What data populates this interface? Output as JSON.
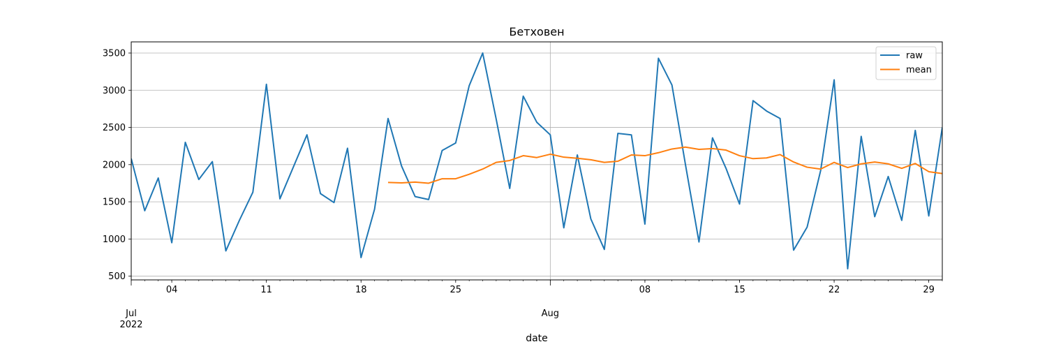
{
  "chart_data": {
    "type": "line",
    "title": "Бетховен",
    "xlabel": "date",
    "ylabel": "",
    "x_start": "2022-07-01",
    "x_end": "2022-07-30",
    "ylim": [
      450,
      3650
    ],
    "y_ticks": [
      500,
      1000,
      1500,
      2000,
      2500,
      3000,
      3500
    ],
    "x_ticks_minor": [
      {
        "date": "2022-07-04",
        "label": "04"
      },
      {
        "date": "2022-07-11",
        "label": "11"
      },
      {
        "date": "2022-07-18",
        "label": "18"
      },
      {
        "date": "2022-07-25",
        "label": "25"
      },
      {
        "date": "2022-08-08",
        "label": "08"
      },
      {
        "date": "2022-08-15",
        "label": "15"
      },
      {
        "date": "2022-08-22",
        "label": "22"
      },
      {
        "date": "2022-08-29",
        "label": "29"
      }
    ],
    "x_ticks_major": [
      {
        "date": "2022-07-01",
        "label": "Jul",
        "sublabel": "2022"
      },
      {
        "date": "2022-08-01",
        "label": "Aug",
        "sublabel": ""
      }
    ],
    "grid": true,
    "legend_position": "top-right",
    "series": [
      {
        "name": "raw",
        "color": "#1f77b4",
        "points": [
          [
            "2022-07-01",
            2080
          ],
          [
            "2022-07-02",
            1380
          ],
          [
            "2022-07-03",
            1820
          ],
          [
            "2022-07-04",
            950
          ],
          [
            "2022-07-05",
            2300
          ],
          [
            "2022-07-06",
            1800
          ],
          [
            "2022-07-07",
            2040
          ],
          [
            "2022-07-08",
            840
          ],
          [
            "2022-07-09",
            1250
          ],
          [
            "2022-07-10",
            1630
          ],
          [
            "2022-07-11",
            3080
          ],
          [
            "2022-07-12",
            1540
          ],
          [
            "2022-07-13",
            1970
          ],
          [
            "2022-07-14",
            2400
          ],
          [
            "2022-07-15",
            1610
          ],
          [
            "2022-07-16",
            1490
          ],
          [
            "2022-07-17",
            2220
          ],
          [
            "2022-07-18",
            750
          ],
          [
            "2022-07-19",
            1400
          ],
          [
            "2022-07-20",
            2620
          ],
          [
            "2022-07-21",
            1980
          ],
          [
            "2022-07-22",
            1570
          ],
          [
            "2022-07-23",
            1530
          ],
          [
            "2022-07-24",
            2190
          ],
          [
            "2022-07-25",
            2290
          ],
          [
            "2022-07-26",
            3060
          ],
          [
            "2022-07-27",
            3500
          ],
          [
            "2022-07-28",
            2610
          ],
          [
            "2022-07-29",
            1680
          ],
          [
            "2022-07-30",
            2920
          ],
          [
            "2022-07-31",
            2570
          ],
          [
            "2022-08-01",
            2400
          ],
          [
            "2022-08-02",
            1150
          ],
          [
            "2022-08-03",
            2130
          ],
          [
            "2022-08-04",
            1270
          ],
          [
            "2022-08-05",
            860
          ],
          [
            "2022-08-06",
            2420
          ],
          [
            "2022-08-07",
            2400
          ],
          [
            "2022-08-08",
            1200
          ],
          [
            "2022-08-09",
            3430
          ],
          [
            "2022-08-10",
            3070
          ],
          [
            "2022-08-11",
            2000
          ],
          [
            "2022-08-12",
            960
          ],
          [
            "2022-08-13",
            2360
          ],
          [
            "2022-08-14",
            1950
          ],
          [
            "2022-08-15",
            1470
          ],
          [
            "2022-08-16",
            2860
          ],
          [
            "2022-08-17",
            2720
          ],
          [
            "2022-08-18",
            2620
          ],
          [
            "2022-08-19",
            850
          ],
          [
            "2022-08-20",
            1160
          ],
          [
            "2022-08-21",
            1920
          ],
          [
            "2022-08-22",
            3140
          ],
          [
            "2022-08-23",
            600
          ],
          [
            "2022-08-24",
            2380
          ],
          [
            "2022-08-25",
            1300
          ],
          [
            "2022-08-26",
            1840
          ],
          [
            "2022-08-27",
            1250
          ],
          [
            "2022-08-28",
            2460
          ],
          [
            "2022-08-29",
            1310
          ],
          [
            "2022-08-30",
            2500
          ]
        ]
      },
      {
        "name": "mean",
        "color": "#ff7f0e",
        "points": [
          [
            "2022-07-20",
            1760
          ],
          [
            "2022-07-21",
            1755
          ],
          [
            "2022-07-22",
            1765
          ],
          [
            "2022-07-23",
            1750
          ],
          [
            "2022-07-24",
            1810
          ],
          [
            "2022-07-25",
            1810
          ],
          [
            "2022-07-26",
            1870
          ],
          [
            "2022-07-27",
            1940
          ],
          [
            "2022-07-28",
            2030
          ],
          [
            "2022-07-29",
            2055
          ],
          [
            "2022-07-30",
            2120
          ],
          [
            "2022-07-31",
            2095
          ],
          [
            "2022-08-01",
            2140
          ],
          [
            "2022-08-02",
            2100
          ],
          [
            "2022-08-03",
            2085
          ],
          [
            "2022-08-04",
            2065
          ],
          [
            "2022-08-05",
            2030
          ],
          [
            "2022-08-06",
            2045
          ],
          [
            "2022-08-07",
            2130
          ],
          [
            "2022-08-08",
            2120
          ],
          [
            "2022-08-09",
            2160
          ],
          [
            "2022-08-10",
            2210
          ],
          [
            "2022-08-11",
            2235
          ],
          [
            "2022-08-12",
            2205
          ],
          [
            "2022-08-13",
            2215
          ],
          [
            "2022-08-14",
            2195
          ],
          [
            "2022-08-15",
            2120
          ],
          [
            "2022-08-16",
            2080
          ],
          [
            "2022-08-17",
            2090
          ],
          [
            "2022-08-18",
            2135
          ],
          [
            "2022-08-19",
            2035
          ],
          [
            "2022-08-20",
            1965
          ],
          [
            "2022-08-21",
            1940
          ],
          [
            "2022-08-22",
            2030
          ],
          [
            "2022-08-23",
            1960
          ],
          [
            "2022-08-24",
            2010
          ],
          [
            "2022-08-25",
            2035
          ],
          [
            "2022-08-26",
            2010
          ],
          [
            "2022-08-27",
            1950
          ],
          [
            "2022-08-28",
            2015
          ],
          [
            "2022-08-29",
            1905
          ],
          [
            "2022-08-30",
            1880
          ]
        ]
      }
    ]
  }
}
